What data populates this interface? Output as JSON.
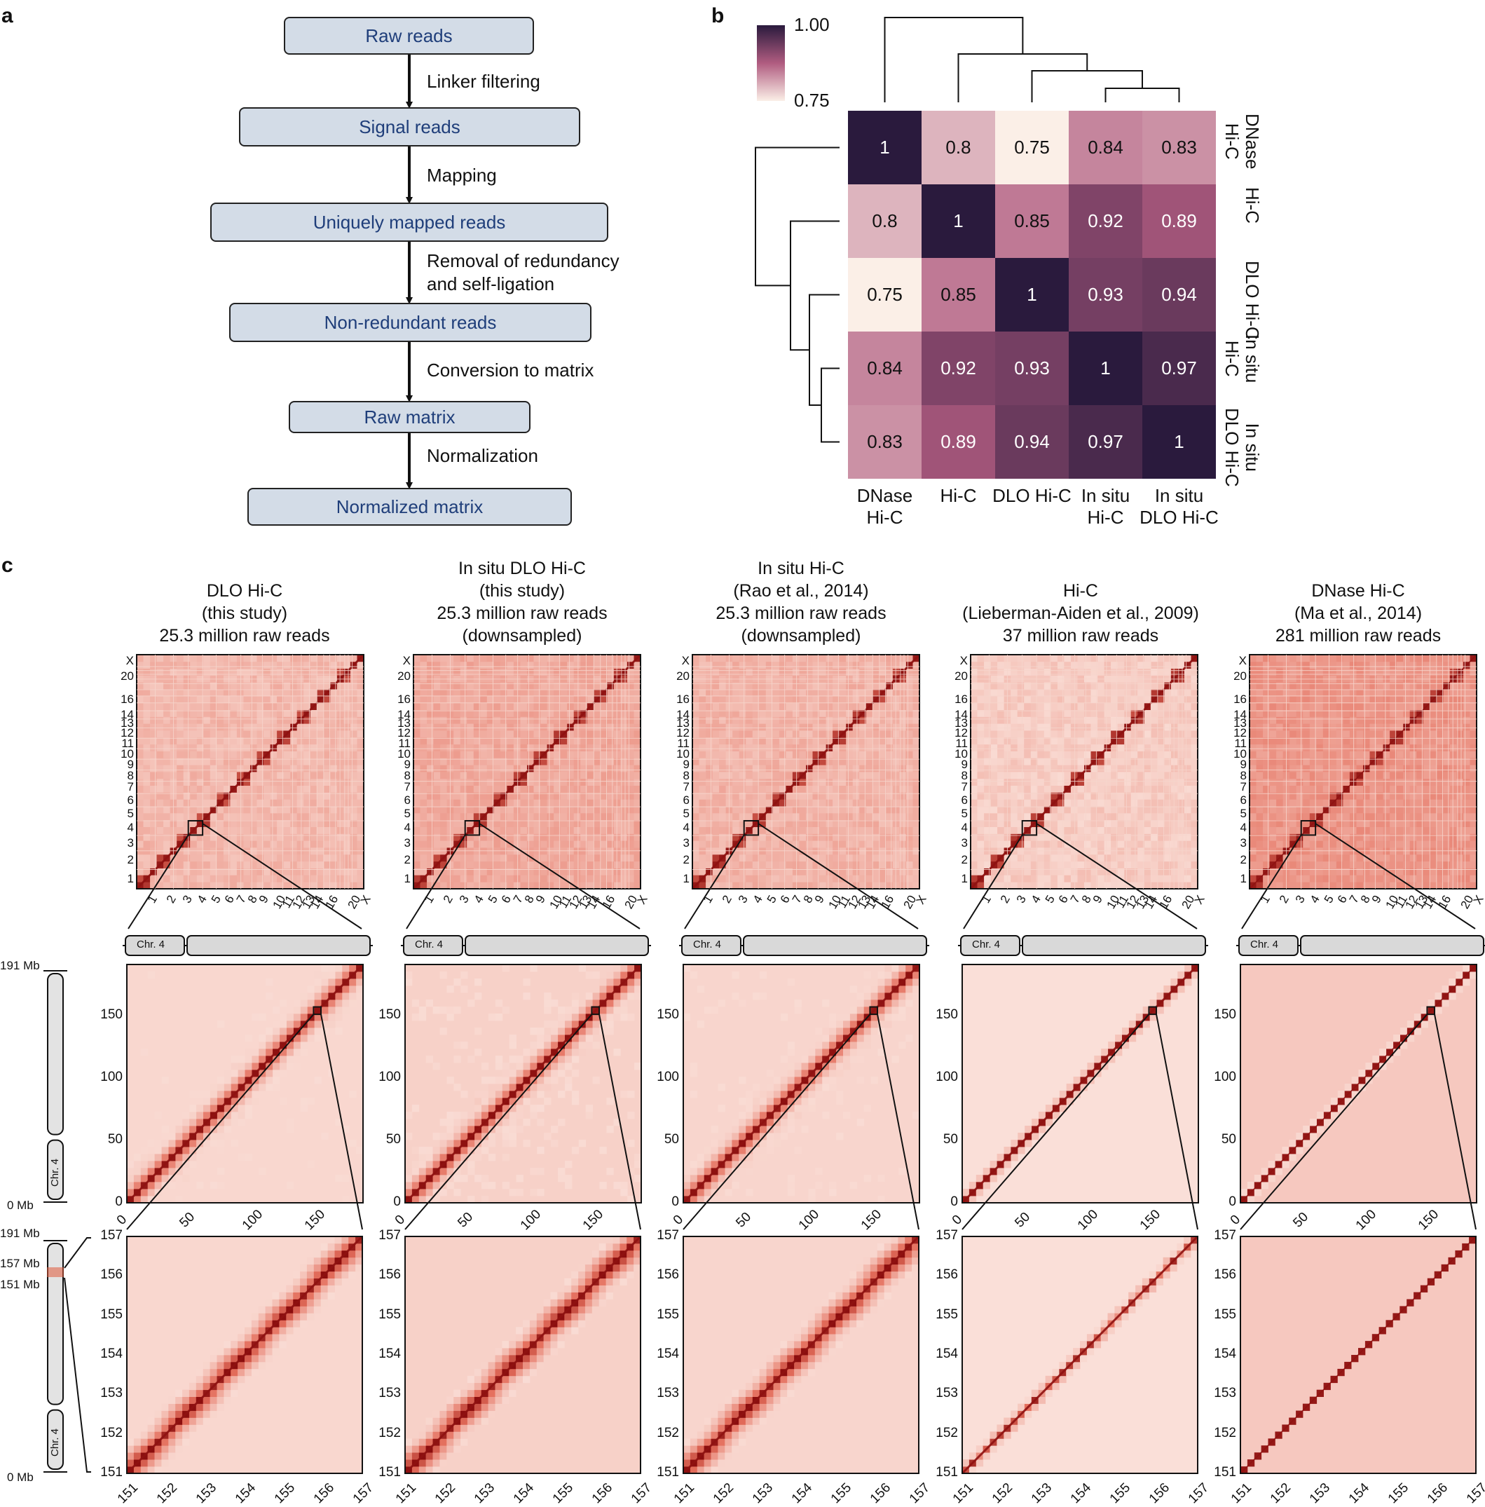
{
  "panels": {
    "a": "a",
    "b": "b",
    "c": "c"
  },
  "flowchart": {
    "boxes": [
      "Raw reads",
      "Signal reads",
      "Uniquely mapped reads",
      "Non-redundant reads",
      "Raw matrix",
      "Normalized matrix"
    ],
    "steps": [
      "Linker filtering",
      "Mapping",
      "Removal of redundancy\nand self-ligation",
      "Conversion to matrix",
      "Normalization"
    ]
  },
  "correlation": {
    "colorbar": {
      "max_label": "1.00",
      "min_label": "0.75",
      "min": 0.75,
      "max": 1.0
    },
    "samples": [
      "DNase\nHi-C",
      "Hi-C",
      "DLO Hi-C",
      "In situ\nHi-C",
      "In situ\nDLO Hi-C"
    ],
    "matrix": [
      [
        1,
        0.8,
        0.75,
        0.84,
        0.83
      ],
      [
        0.8,
        1,
        0.85,
        0.92,
        0.89
      ],
      [
        0.75,
        0.85,
        1,
        0.93,
        0.94
      ],
      [
        0.84,
        0.92,
        0.93,
        1,
        0.97
      ],
      [
        0.83,
        0.89,
        0.94,
        0.97,
        1
      ]
    ],
    "cell_text": [
      [
        "1",
        "0.8",
        "0.75",
        "0.84",
        "0.83"
      ],
      [
        "0.8",
        "1",
        "0.85",
        "0.92",
        "0.89"
      ],
      [
        "0.75",
        "0.85",
        "1",
        "0.93",
        "0.94"
      ],
      [
        "0.84",
        "0.92",
        "0.93",
        "1",
        "0.97"
      ],
      [
        "0.83",
        "0.89",
        "0.94",
        "0.97",
        "1"
      ]
    ]
  },
  "maps": {
    "titles": [
      "DLO Hi-C\n(this study)\n25.3 million raw reads",
      "In situ DLO Hi-C\n(this study)\n25.3 million raw reads\n(downsampled)",
      "In situ Hi-C\n(Rao et al., 2014)\n25.3 million raw reads\n(downsampled)",
      "Hi-C\n(Lieberman-Aiden et al., 2009)\n37 million raw reads",
      "DNase Hi-C\n(Ma et al., 2014)\n281 million raw reads"
    ],
    "genome_y_ticks": [
      "1",
      "2",
      "3",
      "4",
      "5",
      "6",
      "7",
      "8",
      "9",
      "10",
      "11",
      "12",
      "13",
      "14",
      "16",
      "20",
      "X"
    ],
    "genome_x_ticks": [
      "1",
      "2",
      "3",
      "4",
      "5",
      "6",
      "7",
      "8",
      "9",
      "10",
      "11",
      "12",
      "13",
      "14",
      "16",
      "20",
      "X"
    ],
    "chr_label": "Chr. 4",
    "chr_ticks": [
      "0",
      "50",
      "100",
      "150"
    ],
    "zoom_ticks": [
      "151",
      "152",
      "153",
      "154",
      "155",
      "156",
      "157"
    ],
    "ideogram_labels": {
      "top": "191 Mb",
      "bottom": "0 Mb",
      "top2": "191 Mb",
      "mid_hi": "157 Mb",
      "mid_lo": "151 Mb",
      "bottom2": "0 Mb"
    }
  },
  "colors": {
    "box_fill": "#d3dce7",
    "box_text": "#1f3e7a",
    "heat_dark": "#2a1a3d",
    "heat_light": "#fbefe7",
    "map_dark": "#8b0e0e",
    "map_light": "#fdeee8"
  }
}
